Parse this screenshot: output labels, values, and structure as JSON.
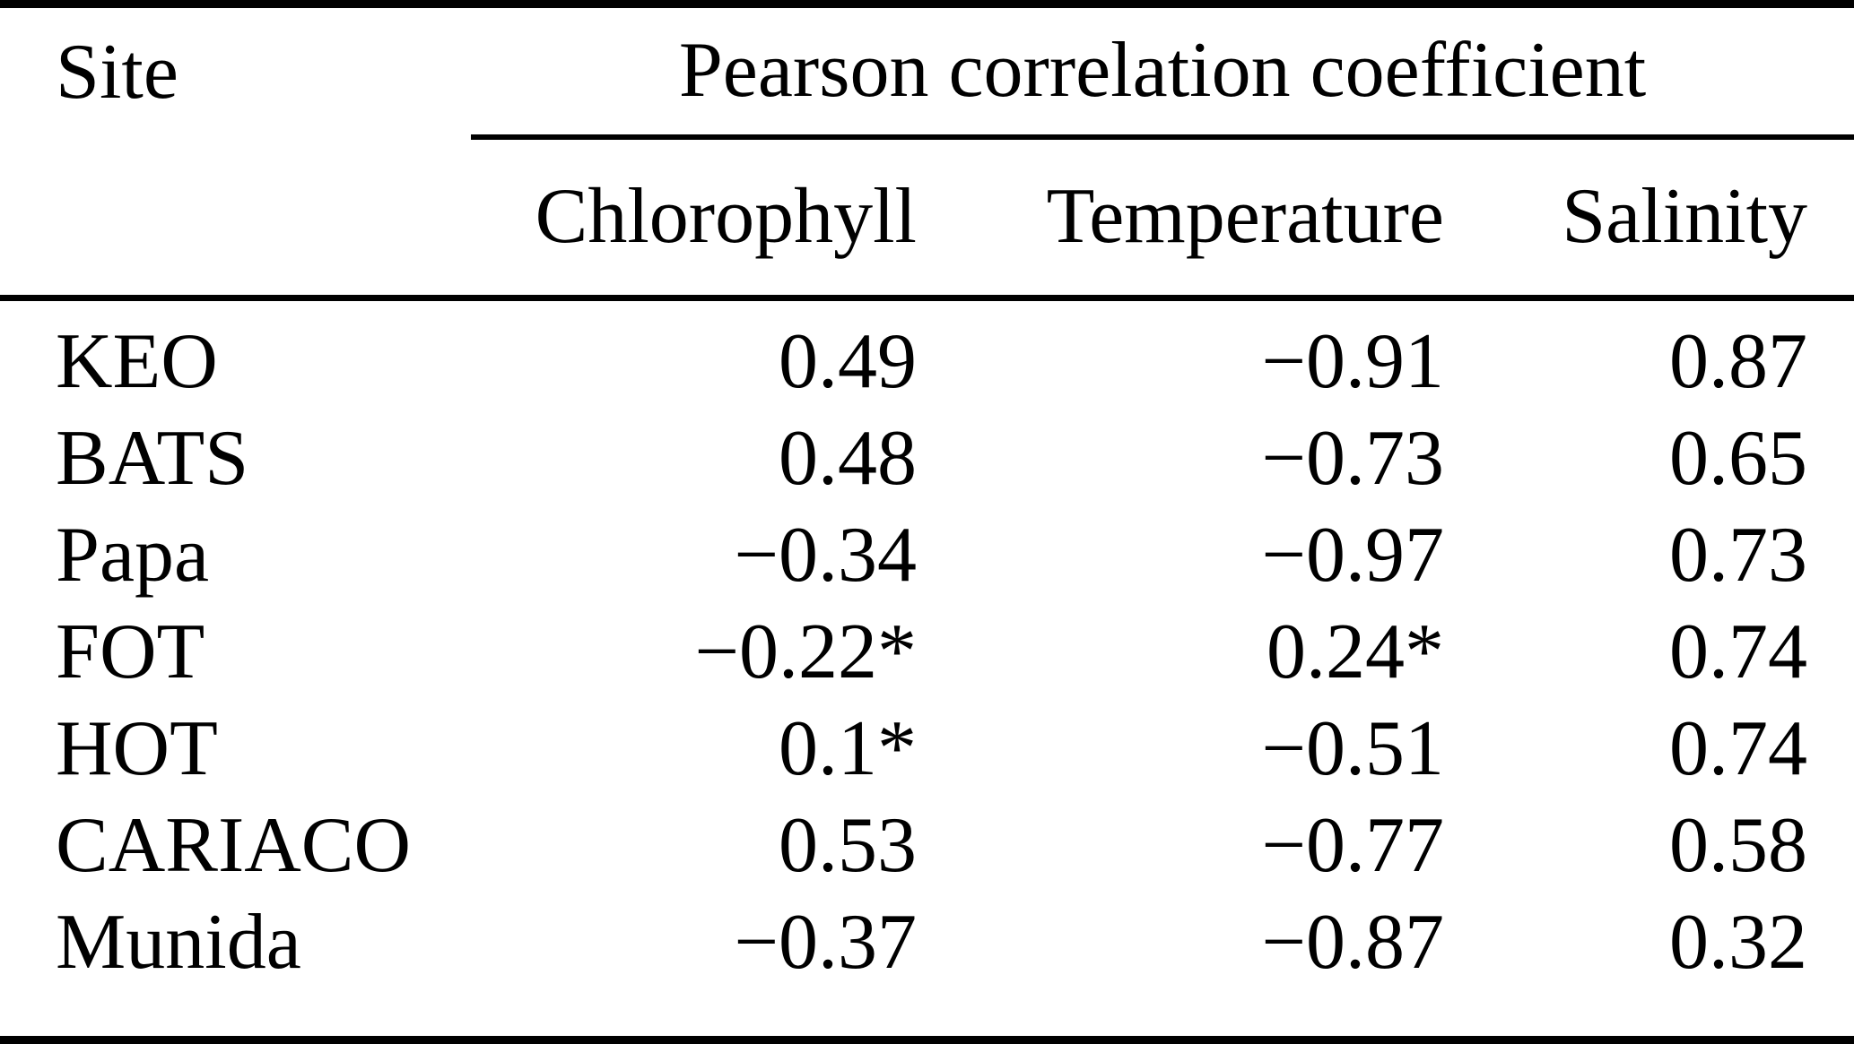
{
  "table": {
    "site_header": "Site",
    "group_header": "Pearson correlation coefficient",
    "columns": [
      "Chlorophyll",
      "Temperature",
      "Salinity"
    ],
    "rows": [
      {
        "site": "KEO",
        "chlorophyll": "0.49",
        "temperature": "−0.91",
        "salinity": "0.87"
      },
      {
        "site": "BATS",
        "chlorophyll": "0.48",
        "temperature": "−0.73",
        "salinity": "0.65"
      },
      {
        "site": "Papa",
        "chlorophyll": "−0.34",
        "temperature": "−0.97",
        "salinity": "0.73"
      },
      {
        "site": "FOT",
        "chlorophyll": "−0.22*",
        "temperature": "0.24*",
        "salinity": "0.74"
      },
      {
        "site": "HOT",
        "chlorophyll": "0.1*",
        "temperature": "−0.51",
        "salinity": "0.74"
      },
      {
        "site": "CARIACO",
        "chlorophyll": "0.53",
        "temperature": "−0.77",
        "salinity": "0.58"
      },
      {
        "site": "Munida",
        "chlorophyll": "−0.37",
        "temperature": "−0.87",
        "salinity": "0.32"
      }
    ]
  }
}
